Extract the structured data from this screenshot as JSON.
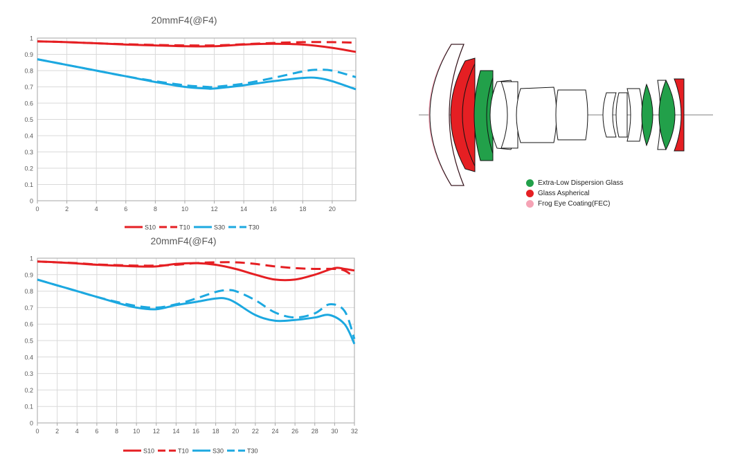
{
  "colors": {
    "s10": "#e51f23",
    "t10": "#e51f23",
    "s30": "#1ca8e0",
    "t30": "#1ca8e0",
    "grid": "#d9d9d9",
    "axis": "#a6a6a6",
    "elg": "#22a04a",
    "asph": "#e51f23",
    "fec": "#f5a3b5"
  },
  "chart_data": [
    {
      "type": "line",
      "title": "20mmF4(@F4)",
      "xlabel": "",
      "ylabel": "",
      "xlim": [
        0,
        21.6
      ],
      "ylim": [
        0,
        1
      ],
      "x_ticks": [
        0,
        2,
        4,
        6,
        8,
        10,
        12,
        14,
        16,
        18,
        20
      ],
      "x_tick_labels": [
        "0",
        "2",
        "4",
        "6",
        "8",
        "10",
        "12",
        "14",
        "16",
        "18",
        "20"
      ],
      "y_ticks": [
        0,
        0.1,
        0.2,
        0.3,
        0.4,
        0.5,
        0.6,
        0.7,
        0.8,
        0.9,
        1
      ],
      "y_tick_labels": [
        "0",
        "0.1",
        "0.2",
        "0.3",
        "0.4",
        "0.5",
        "0.6",
        "0.7",
        "0.8",
        "0.9",
        "1"
      ],
      "grid": true,
      "legend_position": "bottom",
      "series": [
        {
          "name": "S10",
          "key": "s10",
          "dash": false,
          "x": [
            0,
            2,
            4,
            6,
            8,
            10,
            12,
            14,
            16,
            18,
            20,
            21.6
          ],
          "y": [
            0.98,
            0.975,
            0.968,
            0.96,
            0.955,
            0.95,
            0.95,
            0.96,
            0.965,
            0.96,
            0.94,
            0.915
          ]
        },
        {
          "name": "T10",
          "key": "t10",
          "dash": true,
          "x": [
            0,
            2,
            4,
            6,
            8,
            10,
            12,
            14,
            16,
            18,
            20,
            21.6
          ],
          "y": [
            0.98,
            0.975,
            0.968,
            0.962,
            0.958,
            0.955,
            0.955,
            0.962,
            0.97,
            0.975,
            0.975,
            0.972
          ]
        },
        {
          "name": "S30",
          "key": "s30",
          "dash": false,
          "x": [
            0,
            2,
            4,
            6,
            8,
            10,
            11.5,
            12,
            14,
            16,
            18,
            19,
            20,
            21.6
          ],
          "y": [
            0.87,
            0.835,
            0.8,
            0.765,
            0.73,
            0.7,
            0.69,
            0.69,
            0.71,
            0.735,
            0.755,
            0.755,
            0.735,
            0.685
          ]
        },
        {
          "name": "T30",
          "key": "t30",
          "dash": true,
          "x": [
            0,
            2,
            4,
            6,
            8,
            10,
            11.5,
            12,
            14,
            16,
            18,
            19,
            20,
            21.6
          ],
          "y": [
            0.87,
            0.835,
            0.8,
            0.765,
            0.735,
            0.71,
            0.7,
            0.7,
            0.72,
            0.755,
            0.795,
            0.805,
            0.8,
            0.76
          ]
        }
      ]
    },
    {
      "type": "line",
      "title": "20mmF4(@F4)",
      "xlabel": "",
      "ylabel": "",
      "xlim": [
        0,
        32
      ],
      "ylim": [
        0,
        1
      ],
      "x_ticks": [
        0,
        2,
        4,
        6,
        8,
        10,
        12,
        14,
        16,
        18,
        20,
        22,
        24,
        26,
        28,
        30,
        32
      ],
      "x_tick_labels": [
        "0",
        "2",
        "4",
        "6",
        "8",
        "10",
        "12",
        "14",
        "16",
        "18",
        "20",
        "22",
        "24",
        "26",
        "28",
        "30",
        "32"
      ],
      "y_ticks": [
        0,
        0.1,
        0.2,
        0.3,
        0.4,
        0.5,
        0.6,
        0.7,
        0.8,
        0.9,
        1
      ],
      "y_tick_labels": [
        "0",
        "0.1",
        "0.2",
        "0.3",
        "0.4",
        "0.5",
        "0.6",
        "0.7",
        "0.8",
        "0.9",
        "1"
      ],
      "grid": true,
      "legend_position": "bottom",
      "series": [
        {
          "name": "S10",
          "key": "s10",
          "dash": false,
          "x": [
            0,
            2,
            4,
            6,
            8,
            10,
            12,
            14,
            16,
            18,
            20,
            22,
            24,
            26,
            28,
            30,
            31,
            32
          ],
          "y": [
            0.98,
            0.975,
            0.968,
            0.96,
            0.955,
            0.95,
            0.95,
            0.965,
            0.97,
            0.96,
            0.935,
            0.9,
            0.87,
            0.87,
            0.9,
            0.94,
            0.935,
            0.925
          ]
        },
        {
          "name": "T10",
          "key": "t10",
          "dash": true,
          "x": [
            0,
            2,
            4,
            6,
            8,
            10,
            12,
            14,
            16,
            18,
            20,
            22,
            24,
            26,
            28,
            30,
            31,
            32
          ],
          "y": [
            0.98,
            0.975,
            0.97,
            0.962,
            0.958,
            0.955,
            0.955,
            0.96,
            0.97,
            0.975,
            0.975,
            0.965,
            0.95,
            0.94,
            0.935,
            0.935,
            0.925,
            0.885
          ]
        },
        {
          "name": "S30",
          "key": "s30",
          "dash": false,
          "x": [
            0,
            2,
            4,
            6,
            8,
            10,
            12,
            14,
            16,
            18,
            19,
            20,
            22,
            24,
            26,
            28,
            29.5,
            31,
            32
          ],
          "y": [
            0.87,
            0.835,
            0.8,
            0.765,
            0.73,
            0.7,
            0.69,
            0.715,
            0.735,
            0.755,
            0.755,
            0.73,
            0.655,
            0.62,
            0.625,
            0.64,
            0.655,
            0.6,
            0.48
          ]
        },
        {
          "name": "T30",
          "key": "t30",
          "dash": true,
          "x": [
            0,
            2,
            4,
            6,
            8,
            10,
            12,
            14,
            16,
            18,
            19,
            20,
            22,
            24,
            26,
            28,
            29.5,
            31,
            32
          ],
          "y": [
            0.87,
            0.835,
            0.8,
            0.765,
            0.735,
            0.71,
            0.7,
            0.72,
            0.755,
            0.795,
            0.805,
            0.8,
            0.745,
            0.67,
            0.64,
            0.665,
            0.72,
            0.68,
            0.51
          ]
        }
      ]
    }
  ],
  "lens_diagram": {
    "legend": [
      {
        "label": "Extra-Low Dispersion Glass",
        "color_key": "elg"
      },
      {
        "label": "Glass Aspherical",
        "color_key": "asph"
      },
      {
        "label": "Frog Eye Coating(FEC)",
        "color_key": "fec"
      }
    ]
  }
}
